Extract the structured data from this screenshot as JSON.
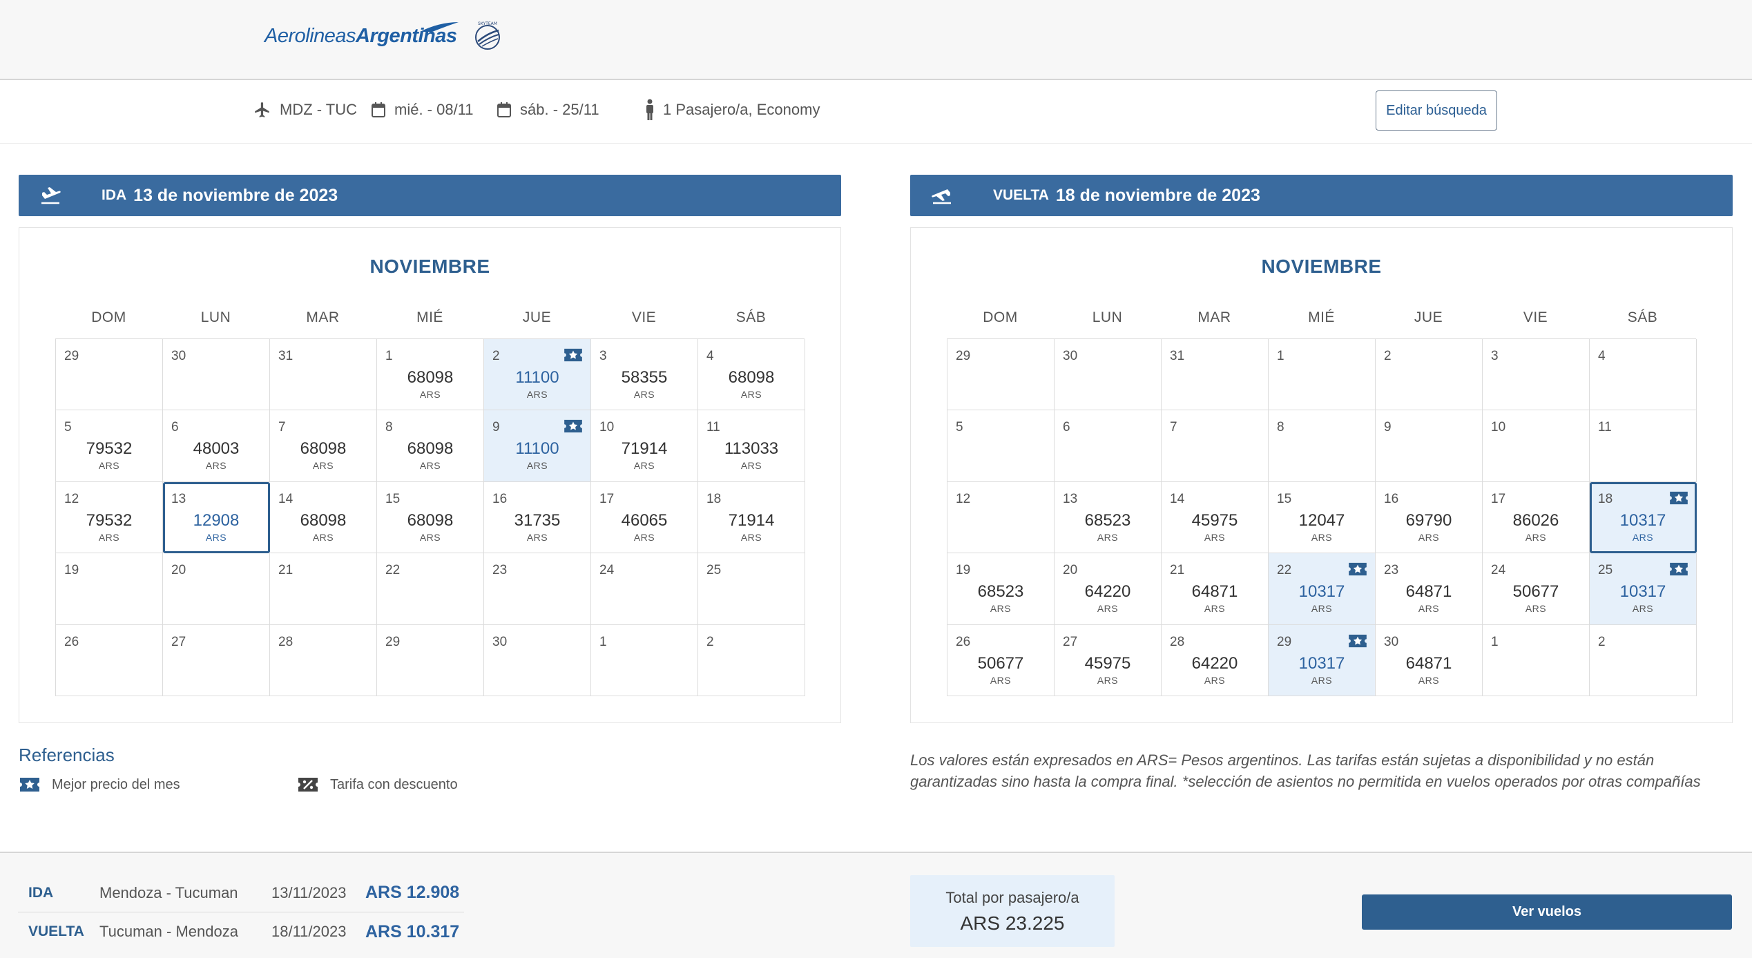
{
  "header": {
    "logo_light": "Aerolineas",
    "logo_bold": "Argentinas",
    "skyteam": "SKYTEAM"
  },
  "search": {
    "route": "MDZ - TUC",
    "depart": "mié. - 08/11",
    "return": "sáb. - 25/11",
    "passengers": "1 Pasajero/a, Economy",
    "edit_label": "Editar búsqueda"
  },
  "colors": {
    "primary": "#3a6b9f",
    "best_bg": "#e6f0fa",
    "price_accent": "#2e63a0"
  },
  "outbound": {
    "kind": "IDA",
    "date": "13 de noviembre de 2023",
    "month": "NOVIEMBRE",
    "dow": [
      "DOM",
      "LUN",
      "MAR",
      "MIÉ",
      "JUE",
      "VIE",
      "SÁB"
    ],
    "cells": [
      {
        "d": "29"
      },
      {
        "d": "30"
      },
      {
        "d": "31"
      },
      {
        "d": "1",
        "p": "68098",
        "c": "ARS"
      },
      {
        "d": "2",
        "p": "11100",
        "c": "ARS",
        "best": true
      },
      {
        "d": "3",
        "p": "58355",
        "c": "ARS"
      },
      {
        "d": "4",
        "p": "68098",
        "c": "ARS"
      },
      {
        "d": "5",
        "p": "79532",
        "c": "ARS"
      },
      {
        "d": "6",
        "p": "48003",
        "c": "ARS"
      },
      {
        "d": "7",
        "p": "68098",
        "c": "ARS"
      },
      {
        "d": "8",
        "p": "68098",
        "c": "ARS"
      },
      {
        "d": "9",
        "p": "11100",
        "c": "ARS",
        "best": true
      },
      {
        "d": "10",
        "p": "71914",
        "c": "ARS"
      },
      {
        "d": "11",
        "p": "113033",
        "c": "ARS"
      },
      {
        "d": "12",
        "p": "79532",
        "c": "ARS"
      },
      {
        "d": "13",
        "p": "12908",
        "c": "ARS",
        "selected": true
      },
      {
        "d": "14",
        "p": "68098",
        "c": "ARS"
      },
      {
        "d": "15",
        "p": "68098",
        "c": "ARS"
      },
      {
        "d": "16",
        "p": "31735",
        "c": "ARS"
      },
      {
        "d": "17",
        "p": "46065",
        "c": "ARS"
      },
      {
        "d": "18",
        "p": "71914",
        "c": "ARS"
      },
      {
        "d": "19"
      },
      {
        "d": "20"
      },
      {
        "d": "21"
      },
      {
        "d": "22"
      },
      {
        "d": "23"
      },
      {
        "d": "24"
      },
      {
        "d": "25"
      },
      {
        "d": "26"
      },
      {
        "d": "27"
      },
      {
        "d": "28"
      },
      {
        "d": "29"
      },
      {
        "d": "30"
      },
      {
        "d": "1"
      },
      {
        "d": "2"
      }
    ]
  },
  "return_leg": {
    "kind": "VUELTA",
    "date": "18 de noviembre de 2023",
    "month": "NOVIEMBRE",
    "dow": [
      "DOM",
      "LUN",
      "MAR",
      "MIÉ",
      "JUE",
      "VIE",
      "SÁB"
    ],
    "cells": [
      {
        "d": "29"
      },
      {
        "d": "30"
      },
      {
        "d": "31"
      },
      {
        "d": "1"
      },
      {
        "d": "2"
      },
      {
        "d": "3"
      },
      {
        "d": "4"
      },
      {
        "d": "5"
      },
      {
        "d": "6"
      },
      {
        "d": "7"
      },
      {
        "d": "8"
      },
      {
        "d": "9"
      },
      {
        "d": "10"
      },
      {
        "d": "11"
      },
      {
        "d": "12"
      },
      {
        "d": "13",
        "p": "68523",
        "c": "ARS"
      },
      {
        "d": "14",
        "p": "45975",
        "c": "ARS"
      },
      {
        "d": "15",
        "p": "12047",
        "c": "ARS"
      },
      {
        "d": "16",
        "p": "69790",
        "c": "ARS"
      },
      {
        "d": "17",
        "p": "86026",
        "c": "ARS"
      },
      {
        "d": "18",
        "p": "10317",
        "c": "ARS",
        "best": true,
        "selected": true
      },
      {
        "d": "19",
        "p": "68523",
        "c": "ARS"
      },
      {
        "d": "20",
        "p": "64220",
        "c": "ARS"
      },
      {
        "d": "21",
        "p": "64871",
        "c": "ARS"
      },
      {
        "d": "22",
        "p": "10317",
        "c": "ARS",
        "best": true
      },
      {
        "d": "23",
        "p": "64871",
        "c": "ARS"
      },
      {
        "d": "24",
        "p": "50677",
        "c": "ARS"
      },
      {
        "d": "25",
        "p": "10317",
        "c": "ARS",
        "best": true
      },
      {
        "d": "26",
        "p": "50677",
        "c": "ARS"
      },
      {
        "d": "27",
        "p": "45975",
        "c": "ARS"
      },
      {
        "d": "28",
        "p": "64220",
        "c": "ARS"
      },
      {
        "d": "29",
        "p": "10317",
        "c": "ARS",
        "best": true
      },
      {
        "d": "30",
        "p": "64871",
        "c": "ARS"
      },
      {
        "d": "1"
      },
      {
        "d": "2"
      }
    ]
  },
  "references": {
    "title": "Referencias",
    "best": "Mejor precio del mes",
    "discount": "Tarifa con descuento"
  },
  "disclaimer": "Los valores están expresados en ARS= Pesos argentinos. Las tarifas están sujetas a disponibilidad y no están garantizadas sino hasta la compra final. *selección de asientos no permitida en vuelos operados por otras compañías",
  "summary": {
    "legs": [
      {
        "kind": "IDA",
        "route": "Mendoza - Tucuman",
        "date": "13/11/2023",
        "price": "ARS 12.908"
      },
      {
        "kind": "VUELTA",
        "route": "Tucuman - Mendoza",
        "date": "18/11/2023",
        "price": "ARS 10.317"
      }
    ],
    "total_label": "Total por pasajero/a",
    "total_value": "ARS 23.225",
    "cta": "Ver vuelos"
  }
}
